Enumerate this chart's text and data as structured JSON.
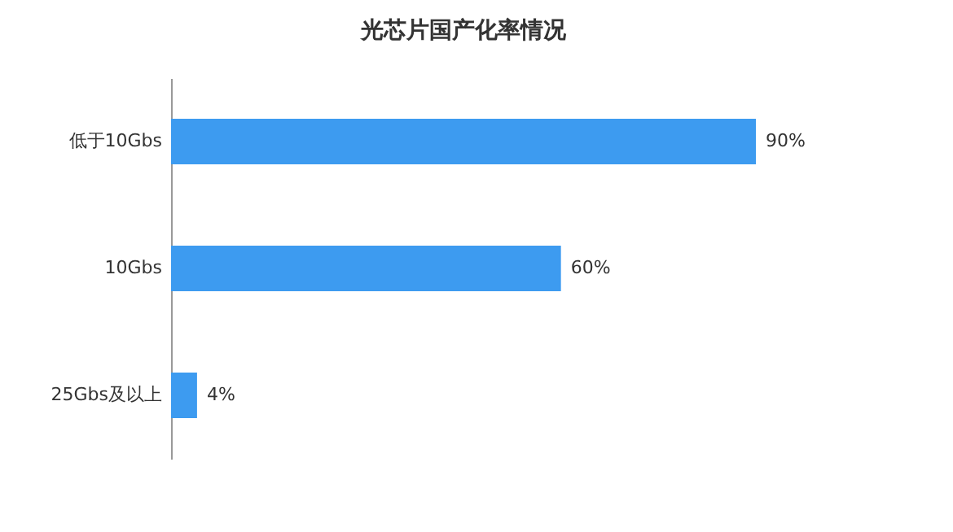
{
  "chart_data": {
    "type": "bar",
    "title": "光芯片国产化率情况",
    "orientation": "horizontal",
    "categories": [
      "低于10Gbs",
      "10Gbs",
      "25Gbs及以上"
    ],
    "values": [
      90,
      60,
      4
    ],
    "color": "#3d9bf0",
    "value_labels": [
      "90%",
      "60%",
      "4%"
    ],
    "tick_labels": "y"
  }
}
